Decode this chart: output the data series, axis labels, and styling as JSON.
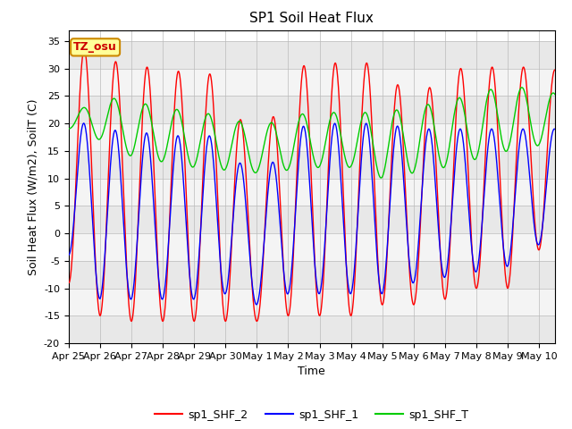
{
  "title": "SP1 Soil Heat Flux",
  "xlabel": "Time",
  "ylabel": "Soil Heat Flux (W/m2), SoilT (C)",
  "ylim": [
    -20,
    37
  ],
  "yticks": [
    -20,
    -15,
    -10,
    -5,
    0,
    5,
    10,
    15,
    20,
    25,
    30,
    35
  ],
  "xtick_labels": [
    "Apr 25",
    "Apr 26",
    "Apr 27",
    "Apr 28",
    "Apr 29",
    "Apr 30",
    "May 1",
    "May 2",
    "May 3",
    "May 4",
    "May 5",
    "May 6",
    "May 7",
    "May 8",
    "May 9",
    "May 10"
  ],
  "colors": {
    "sp1_SHF_2": "#ff0000",
    "sp1_SHF_1": "#0000ff",
    "sp1_SHF_T": "#00cc00"
  },
  "annotation_text": "TZ_osu",
  "annotation_facecolor": "#ffff99",
  "annotation_edgecolor": "#cc8800",
  "num_days": 15.5,
  "legend_entries": [
    "sp1_SHF_2",
    "sp1_SHF_1",
    "sp1_SHF_T"
  ],
  "band_colors": [
    "#e8e8e8",
    "#f4f4f4"
  ],
  "title_fontsize": 11,
  "tick_fontsize": 8,
  "label_fontsize": 9
}
